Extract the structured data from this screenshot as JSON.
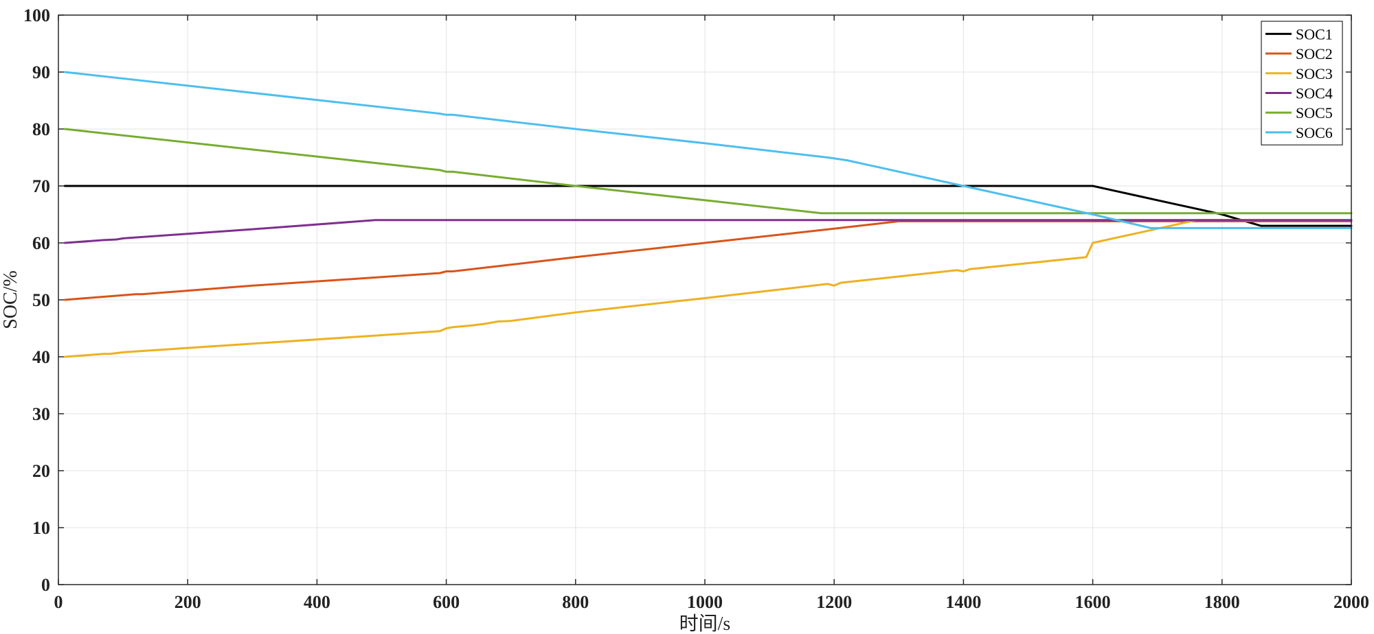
{
  "chart_data": {
    "type": "line",
    "title": "",
    "xlabel": "时间/s",
    "ylabel": "SOC/%",
    "xlim": [
      0,
      2000
    ],
    "ylim": [
      0,
      100
    ],
    "xticks": [
      0,
      200,
      400,
      600,
      800,
      1000,
      1200,
      1400,
      1600,
      1800,
      2000
    ],
    "yticks": [
      0,
      10,
      20,
      30,
      40,
      50,
      60,
      70,
      80,
      90,
      100
    ],
    "grid": true,
    "legend": "top-right",
    "series": [
      {
        "name": "SOC1",
        "color": "#000000",
        "x": [
          10,
          1600,
          1640,
          1700,
          1760,
          1800,
          1830,
          1860,
          2000
        ],
        "y": [
          70,
          70,
          69,
          67.5,
          66,
          65,
          64,
          63,
          63
        ]
      },
      {
        "name": "SOC2",
        "color": "#D95319",
        "x": [
          10,
          120,
          130,
          300,
          500,
          590,
          600,
          610,
          800,
          1000,
          1200,
          1300,
          1310,
          2000
        ],
        "y": [
          50,
          51,
          51,
          52.5,
          54,
          54.7,
          55,
          55,
          57.5,
          60,
          62.5,
          63.8,
          63.8,
          63.8
        ]
      },
      {
        "name": "SOC3",
        "color": "#EDB120",
        "x": [
          10,
          70,
          80,
          100,
          300,
          500,
          590,
          600,
          610,
          620,
          640,
          660,
          680,
          700,
          800,
          1000,
          1190,
          1200,
          1210,
          1390,
          1400,
          1410,
          1590,
          1600,
          1640,
          1660,
          1700,
          1760,
          2000
        ],
        "y": [
          40,
          40.5,
          40.5,
          40.8,
          42.3,
          43.8,
          44.5,
          45,
          45.2,
          45.3,
          45.5,
          45.8,
          46.2,
          46.3,
          47.8,
          50.3,
          52.8,
          52.5,
          53,
          55.2,
          55,
          55.4,
          57.5,
          60,
          61,
          61.5,
          62.5,
          64,
          64
        ]
      },
      {
        "name": "SOC4",
        "color": "#7E2F8E",
        "x": [
          10,
          70,
          90,
          100,
          300,
          490,
          500,
          2000
        ],
        "y": [
          60,
          60.5,
          60.6,
          60.8,
          62.4,
          64,
          64,
          64
        ]
      },
      {
        "name": "SOC5",
        "color": "#77AC30",
        "x": [
          10,
          590,
          600,
          610,
          800,
          1000,
          1180,
          1190,
          2000
        ],
        "y": [
          80,
          72.8,
          72.5,
          72.5,
          70,
          67.5,
          65.2,
          65.2,
          65.2
        ]
      },
      {
        "name": "SOC6",
        "color": "#4DBEEE",
        "x": [
          10,
          590,
          600,
          610,
          800,
          1000,
          1190,
          1220,
          1400,
          1600,
          1690,
          1700,
          2000
        ],
        "y": [
          90,
          82.7,
          82.5,
          82.5,
          80,
          77.5,
          75,
          74.5,
          70,
          65,
          62.6,
          62.6,
          62.6
        ]
      }
    ]
  }
}
